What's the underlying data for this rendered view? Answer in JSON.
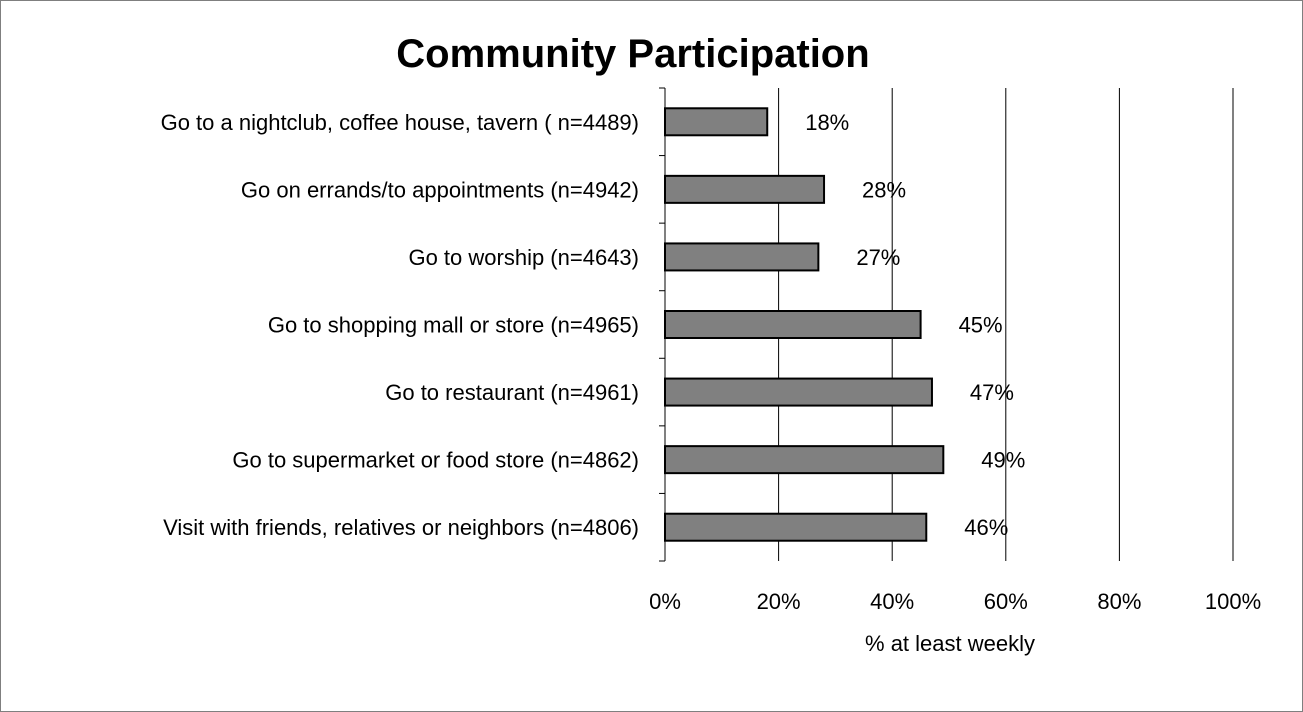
{
  "chart_data": {
    "type": "bar",
    "orientation": "horizontal",
    "title": "Community Participation",
    "xlabel": "% at least weekly",
    "ylabel": "",
    "xlim": [
      0,
      100
    ],
    "x_ticks": [
      "0%",
      "20%",
      "40%",
      "60%",
      "80%",
      "100%"
    ],
    "categories": [
      "Go to a nightclub, coffee house, tavern ( n=4489)",
      "Go on errands/to appointments (n=4942)",
      "Go to worship (n=4643)",
      "Go to shopping mall or store (n=4965)",
      "Go to restaurant (n=4961)",
      "Go to supermarket or food store (n=4862)",
      "Visit with friends, relatives or neighbors (n=4806)"
    ],
    "values": [
      18,
      28,
      27,
      45,
      47,
      49,
      46
    ],
    "data_labels": [
      "18%",
      "28%",
      "27%",
      "45%",
      "47%",
      "49%",
      "46%"
    ],
    "grid": "vertical gridlines",
    "legend": "none",
    "colors": {
      "bar_fill": "#808080",
      "bar_stroke": "#000000",
      "grid": "#000000"
    }
  }
}
